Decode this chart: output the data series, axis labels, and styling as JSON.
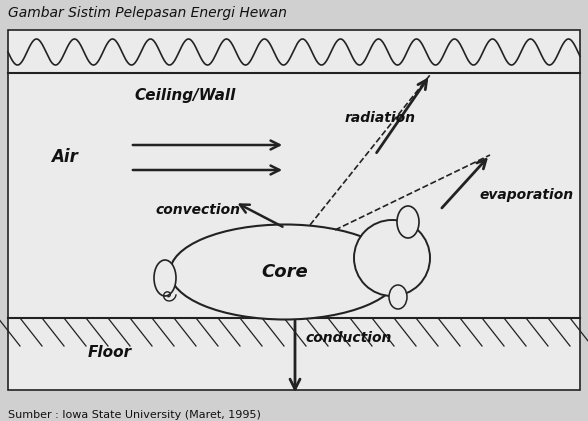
{
  "title": "Gambar Sistim Pelepasan Energi Hewan",
  "source": "Sumber : Iowa State University (Maret, 1995)",
  "bg_color": "#d0d0d0",
  "box_color": "#ebebeb",
  "line_color": "#222222",
  "text_color": "#111111",
  "labels": {
    "ceiling": "Ceiling/Wall",
    "floor": "Floor",
    "air": "Air",
    "core": "Core",
    "radiation": "radiation",
    "evaporation": "evaporation",
    "convection": "convection",
    "conduction": "conduction"
  }
}
